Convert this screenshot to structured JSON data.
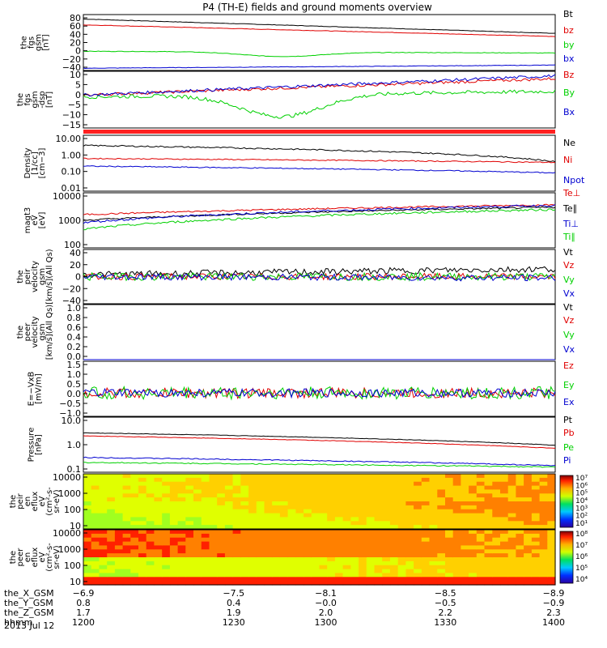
{
  "title": "P4 (TH-E) fields and ground moments overview",
  "colors": {
    "black": "#000000",
    "red": "#e00000",
    "green": "#00d000",
    "blue": "#0000d0",
    "bar": "#ff2020"
  },
  "chart_data": [
    {
      "type": "line",
      "ylabel": [
        "the",
        "fgs",
        "gsm",
        "[nT]"
      ],
      "yticks": [
        "80",
        "60",
        "40",
        "20",
        "0",
        "−20",
        "−40"
      ],
      "ylim": [
        -40,
        85
      ],
      "series": [
        {
          "name": "Bt",
          "color": "#000000",
          "start": 75,
          "end": 43,
          "noise": 0.5
        },
        {
          "name": "bz",
          "color": "#e00000",
          "start": 62,
          "end": 36,
          "noise": 0.5
        },
        {
          "name": "by",
          "color": "#00d000",
          "start": 3,
          "end": -1,
          "noise": 0.6,
          "dip": -10
        },
        {
          "name": "bx",
          "color": "#0000d0",
          "start": -35,
          "end": -28,
          "noise": 0.5
        }
      ]
    },
    {
      "type": "line",
      "ylabel": [
        "the",
        "fgs",
        "gsm",
        "-dsp",
        "[nT]"
      ],
      "yticks": [
        "10",
        "5",
        "0",
        "−5",
        "−10",
        "−15"
      ],
      "ylim": [
        -19,
        12
      ],
      "series": [
        {
          "name": "Bz",
          "color": "#e00000",
          "start": -1,
          "end": 8,
          "noise": 0.8
        },
        {
          "name": "By",
          "color": "#00d000",
          "start": -2,
          "end": 1,
          "noise": 1.0,
          "dip": -12
        },
        {
          "name": "Bx",
          "color": "#0000d0",
          "start": -1,
          "end": 9.5,
          "noise": 0.8
        }
      ]
    },
    {
      "type": "bar",
      "ylabel": [],
      "yticks": [],
      "series": []
    },
    {
      "type": "line",
      "ylabel": [
        "Density",
        "[1/cc]",
        "[cm−3]"
      ],
      "yticks": [
        "10.00",
        "1.00",
        "0.10",
        "0.01"
      ],
      "ylim": [
        0.01,
        20
      ],
      "log": true,
      "series": [
        {
          "name": "Ne",
          "color": "#000000",
          "start": 5,
          "end": 0.55,
          "noise": 0.04
        },
        {
          "name": "Ni",
          "color": "#e00000",
          "start": 0.85,
          "end": 0.5,
          "noise": 0.03
        },
        {
          "name": "Npot",
          "color": "#0000d0",
          "start": 0.3,
          "end": 0.12,
          "noise": 0.03
        }
      ]
    },
    {
      "type": "line",
      "ylabel": [
        "magt3",
        "eV",
        "[eV]"
      ],
      "yticks": [
        "10000",
        "1000",
        "100"
      ],
      "ylim": [
        100,
        12000
      ],
      "log": true,
      "series": [
        {
          "name": "Te⊥",
          "color": "#e00000",
          "start": 1800,
          "end": 4200,
          "noise": 0.03
        },
        {
          "name": "Te∥",
          "color": "#000000",
          "start": 1100,
          "end": 3400,
          "noise": 0.03
        },
        {
          "name": "Ti⊥",
          "color": "#0000d0",
          "start": 900,
          "end": 4000,
          "noise": 0.04
        },
        {
          "name": "Ti∥",
          "color": "#00d000",
          "start": 500,
          "end": 2800,
          "noise": 0.04
        }
      ]
    },
    {
      "type": "line",
      "ylabel": [
        "the",
        "peir",
        "velocity",
        "gsm",
        "[km/s](All Qs)"
      ],
      "yticks": [
        "40",
        "20",
        "0",
        "−20",
        "−40"
      ],
      "ylim": [
        -42,
        42
      ],
      "series": [
        {
          "name": "Vt",
          "color": "#000000",
          "start": 3,
          "end": 12,
          "noise": 5
        },
        {
          "name": "Vz",
          "color": "#e00000",
          "start": 0,
          "end": 0,
          "noise": 5
        },
        {
          "name": "Vy",
          "color": "#00d000",
          "start": 0,
          "end": 0,
          "noise": 6
        },
        {
          "name": "Vx",
          "color": "#0000d0",
          "start": 0,
          "end": -2,
          "noise": 5
        }
      ]
    },
    {
      "type": "line",
      "ylabel": [
        "the",
        "peer",
        "velocity",
        "gsm",
        "[km/s](All Qs)"
      ],
      "yticks": [
        "1.0",
        "0.8",
        "0.6",
        "0.4",
        "0.2",
        "0.0"
      ],
      "ylim": [
        0,
        1
      ],
      "series": [
        {
          "name": "Vt",
          "color": "#000000",
          "start": 0,
          "end": 0,
          "noise": 0
        },
        {
          "name": "Vz",
          "color": "#e00000",
          "start": 0,
          "end": 0,
          "noise": 0
        },
        {
          "name": "Vy",
          "color": "#00d000",
          "start": 0,
          "end": 0,
          "noise": 0
        },
        {
          "name": "Vx",
          "color": "#0000d0",
          "start": 0,
          "end": 0,
          "noise": 0
        }
      ]
    },
    {
      "type": "line",
      "ylabel": [
        "E=−VxB",
        "[mV/m]"
      ],
      "yticks": [
        "1.5",
        "1.0",
        "0.5",
        "0.0",
        "−0.5",
        "−1.0"
      ],
      "ylim": [
        -1.1,
        1.5
      ],
      "series": [
        {
          "name": "Ez",
          "color": "#e00000",
          "start": 0,
          "end": 0,
          "noise": 0.25
        },
        {
          "name": "Ey",
          "color": "#00d000",
          "start": 0,
          "end": 0,
          "noise": 0.3
        },
        {
          "name": "Ex",
          "color": "#0000d0",
          "start": 0,
          "end": 0,
          "noise": 0.2
        }
      ]
    },
    {
      "type": "line",
      "ylabel": [
        "Pressure",
        "[nPa]"
      ],
      "yticks": [
        "10.0",
        "1.0",
        "0.1"
      ],
      "ylim": [
        0.08,
        14
      ],
      "log": true,
      "series": [
        {
          "name": "Pt",
          "color": "#000000",
          "start": 3.2,
          "end": 1.0,
          "noise": 0.01
        },
        {
          "name": "Pb",
          "color": "#e00000",
          "start": 2.4,
          "end": 0.75,
          "noise": 0.01
        },
        {
          "name": "Pe",
          "color": "#00d000",
          "start": 0.2,
          "end": 0.13,
          "noise": 0.02
        },
        {
          "name": "Pi",
          "color": "#0000d0",
          "start": 0.32,
          "end": 0.15,
          "noise": 0.02
        }
      ]
    },
    {
      "type": "heatmap",
      "ylabel": [
        "the",
        "peir",
        "en",
        "eflux",
        "eV",
        "(cm²-s-",
        "sr-eV)"
      ],
      "yticks": [
        "10000",
        "1000",
        "100",
        "10"
      ],
      "colorbar": [
        "10⁷",
        "10⁶",
        "10⁵",
        "10⁴",
        "10³",
        "10²",
        "10¹"
      ]
    },
    {
      "type": "heatmap",
      "ylabel": [
        "the",
        "peer",
        "en",
        "eflux",
        "eV",
        "(cm²-s-",
        "sr-eV)"
      ],
      "yticks": [
        "10000",
        "1000",
        "100",
        "10"
      ],
      "colorbar": [
        "10⁸",
        "10⁷",
        "10⁶",
        "10⁵",
        "10⁴"
      ]
    }
  ],
  "xaxis": {
    "rows": [
      {
        "label": "the_X_GSM",
        "values": [
          "−6.9",
          "−7.5",
          "−8.1",
          "−8.5",
          "−8.9"
        ]
      },
      {
        "label": "the_Y_GSM",
        "values": [
          "0.8",
          "0.4",
          "−0.0",
          "−0.5",
          "−0.9"
        ]
      },
      {
        "label": "the_Z_GSM",
        "values": [
          "1.7",
          "1.9",
          "2.0",
          "2.2",
          "2.3"
        ]
      },
      {
        "label": "hhmm",
        "values": [
          "1200",
          "1230",
          "1300",
          "1330",
          "1400"
        ]
      }
    ],
    "date": "2013 Jul 12"
  }
}
